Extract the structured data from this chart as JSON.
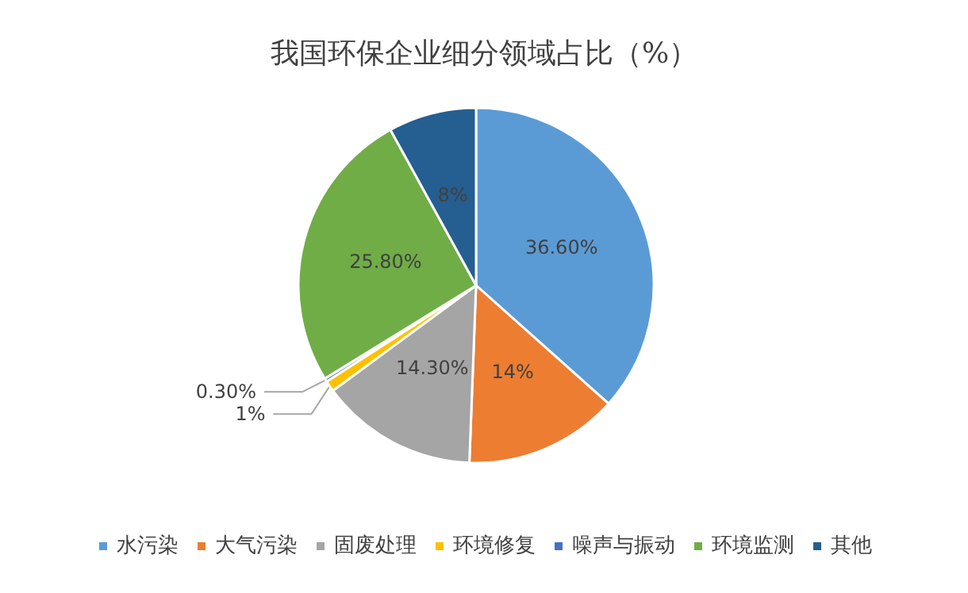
{
  "chart_data": {
    "type": "pie",
    "title": "我国环保企业细分领域占比（%）",
    "categories": [
      "水污染",
      "大气污染",
      "固废处理",
      "环境修复",
      "噪声与振动",
      "环境监测",
      "其他"
    ],
    "values": [
      36.6,
      14,
      14.3,
      1,
      0.3,
      25.8,
      8
    ],
    "colors": [
      "#5b9bd5",
      "#ed7d31",
      "#a5a5a5",
      "#ffc000",
      "#4472c4",
      "#70ad47",
      "#255e91"
    ],
    "value_labels": [
      "36.60%",
      "14%",
      "14.30%",
      "1%",
      "0.30%",
      "25.80%",
      "8%"
    ],
    "legend": "bottom"
  }
}
